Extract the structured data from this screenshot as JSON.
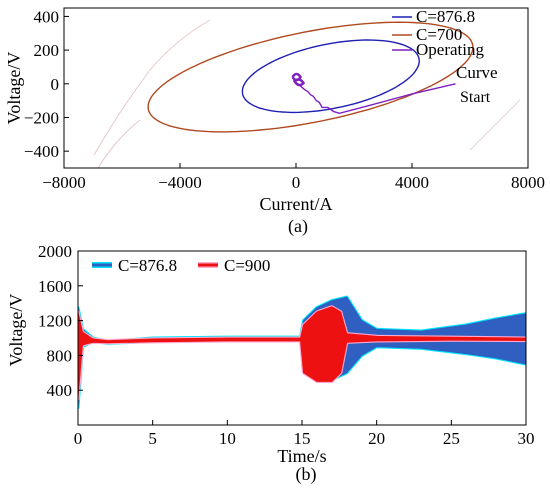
{
  "chart_data": [
    {
      "type": "line",
      "panel_label": "(a)",
      "xlabel": "Current/A",
      "ylabel": "Voltage/V",
      "xlim": [
        -8000,
        8000
      ],
      "ylim": [
        -500,
        450
      ],
      "xticks": [
        "−8000",
        "−4000",
        "0",
        "4000",
        "8000"
      ],
      "yticks": [
        "400",
        "200",
        "0",
        "−200",
        "−400"
      ],
      "legend": {
        "placement": "top-right",
        "entries": [
          "C=876.8",
          "C=700",
          "Operating",
          "Curve"
        ]
      },
      "annotations": [
        {
          "text": "Start",
          "x": 5800,
          "y": -20
        }
      ],
      "series": [
        {
          "name": "C=876.8",
          "color": "#1f1fb4",
          "shape": "ellipse",
          "center": [
            1200,
            45
          ],
          "semi_axes": [
            3050,
            205
          ],
          "tilt": -0.32
        },
        {
          "name": "C=700",
          "color": "#b04a20",
          "shape": "ellipse",
          "center": [
            500,
            40
          ],
          "semi_axes": [
            5600,
            290
          ],
          "tilt": -0.34
        },
        {
          "name": "Operating Curve",
          "color": "#8020c0",
          "x": [
            5500,
            4000,
            2500,
            1500,
            1300,
            1100,
            900,
            800,
            700,
            600,
            500,
            400,
            300,
            200,
            100,
            0,
            -50,
            -100
          ],
          "y": [
            0,
            -60,
            -130,
            -175,
            -165,
            -140,
            -140,
            -110,
            -100,
            -75,
            -65,
            -45,
            -35,
            -20,
            -5,
            5,
            20,
            15
          ]
        }
      ]
    },
    {
      "type": "line",
      "panel_label": "(b)",
      "xlabel": "Time/s",
      "ylabel": "Voltage/V",
      "xlim": [
        0,
        30
      ],
      "ylim": [
        0,
        2000
      ],
      "xticks": [
        "0",
        "5",
        "10",
        "15",
        "20",
        "25",
        "30"
      ],
      "yticks": [
        "2000",
        "1600",
        "1200",
        "800",
        "400"
      ],
      "legend": {
        "placement": "top-left",
        "entries": [
          "C=876.8",
          "C=900"
        ]
      },
      "series": [
        {
          "name": "C=876.8",
          "color": "#2f5fc0",
          "halo_color": "#00e5ff",
          "band_upper": [
            [
              0,
              1350
            ],
            [
              0.3,
              1100
            ],
            [
              1,
              1000
            ],
            [
              2,
              960
            ],
            [
              5,
              1000
            ],
            [
              10,
              1010
            ],
            [
              14.9,
              1010
            ],
            [
              15.1,
              1200
            ],
            [
              16,
              1350
            ],
            [
              17,
              1430
            ],
            [
              18,
              1470
            ],
            [
              19,
              1200
            ],
            [
              20,
              1100
            ],
            [
              23,
              1080
            ],
            [
              26,
              1150
            ],
            [
              28,
              1220
            ],
            [
              30,
              1280
            ]
          ],
          "band_lower": [
            [
              0,
              200
            ],
            [
              0.3,
              900
            ],
            [
              1,
              960
            ],
            [
              2,
              940
            ],
            [
              5,
              960
            ],
            [
              10,
              970
            ],
            [
              14.9,
              970
            ],
            [
              15.1,
              600
            ],
            [
              16,
              520
            ],
            [
              17,
              520
            ],
            [
              18,
              600
            ],
            [
              19,
              800
            ],
            [
              20,
              900
            ],
            [
              23,
              880
            ],
            [
              26,
              820
            ],
            [
              28,
              770
            ],
            [
              30,
              700
            ]
          ]
        },
        {
          "name": "C=900",
          "color": "#ee1111",
          "halo_color": "#ffaad0",
          "band_upper": [
            [
              0,
              1300
            ],
            [
              0.3,
              1070
            ],
            [
              1,
              990
            ],
            [
              2,
              970
            ],
            [
              5,
              990
            ],
            [
              10,
              1000
            ],
            [
              14.9,
              1000
            ],
            [
              15.1,
              1150
            ],
            [
              16,
              1300
            ],
            [
              17,
              1360
            ],
            [
              17.6,
              1300
            ],
            [
              18,
              1050
            ],
            [
              20,
              1020
            ],
            [
              25,
              1010
            ],
            [
              30,
              1000
            ]
          ],
          "band_lower": [
            [
              0,
              300
            ],
            [
              0.3,
              920
            ],
            [
              1,
              950
            ],
            [
              2,
              945
            ],
            [
              5,
              955
            ],
            [
              10,
              965
            ],
            [
              14.9,
              965
            ],
            [
              15.1,
              600
            ],
            [
              16,
              500
            ],
            [
              17,
              500
            ],
            [
              17.6,
              600
            ],
            [
              18,
              950
            ],
            [
              20,
              965
            ],
            [
              25,
              975
            ],
            [
              30,
              970
            ]
          ]
        }
      ]
    }
  ]
}
